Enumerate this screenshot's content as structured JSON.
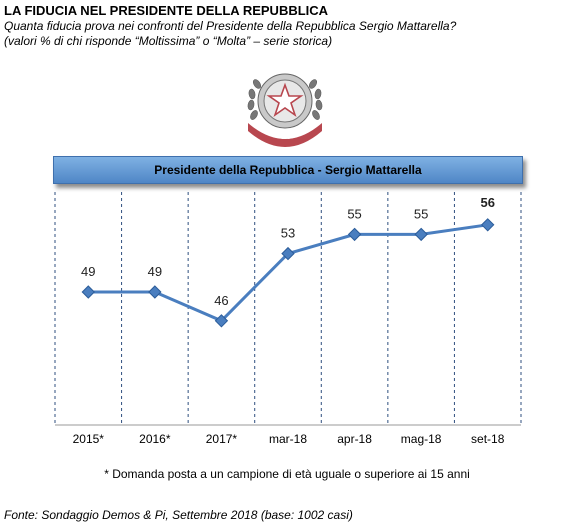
{
  "header": {
    "title": "LA FIDUCIA NEL PRESIDENTE DELLA REPUBBLICA",
    "subtitle_line1": "Quanta fiducia prova nei confronti del Presidente della Repubblica Sergio Mattarella?",
    "subtitle_line2": "(valori % di chi risponde “Moltissima” o “Molta” – serie storica)"
  },
  "emblem": {
    "text": "REPUBBLICA ITALIANA",
    "colors": {
      "ring": "#b8474f",
      "star": "#ffffff",
      "leaves": "#6f6f6f"
    }
  },
  "banner": {
    "label": "Presidente della Repubblica - Sergio Mattarella"
  },
  "chart_data": {
    "type": "line",
    "categories": [
      "2015*",
      "2016*",
      "2017*",
      "mar-18",
      "apr-18",
      "mag-18",
      "set-18"
    ],
    "series": [
      {
        "values": [
          49,
          49,
          46,
          53,
          55,
          55,
          56
        ]
      }
    ],
    "highlight_last_value": true,
    "grid": "dashed vertical separators",
    "color": "#4a7ebf"
  },
  "footnote": "* Domanda posta a un campione di età uguale o superiore ai 15 anni",
  "source": "Fonte: Sondaggio Demos & Pi, Settembre 2018 (base: 1002 casi)"
}
